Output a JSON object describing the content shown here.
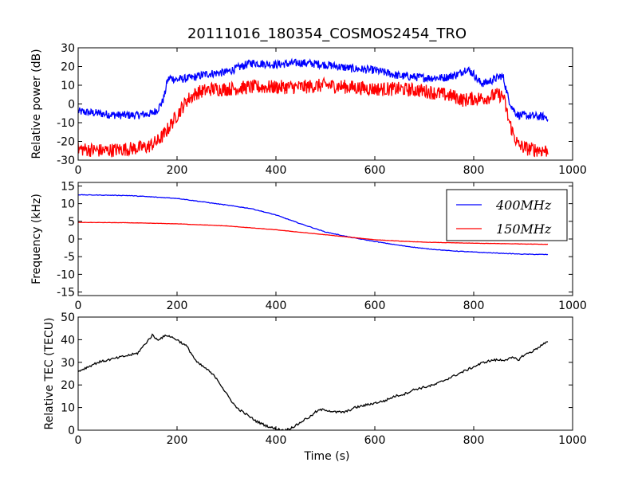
{
  "figure": {
    "title": "20111016_180354_COSMOS2454_TRO",
    "xlabel": "Time (s)"
  },
  "chart_data": [
    {
      "type": "line",
      "ylabel": "Relative power (dB)",
      "xlim": [
        0,
        1000
      ],
      "ylim": [
        -30,
        30
      ],
      "xticks": [
        0,
        200,
        400,
        600,
        800,
        1000
      ],
      "yticks": [
        -30,
        -20,
        -10,
        0,
        10,
        20,
        30
      ],
      "legend": false,
      "series": [
        {
          "color": "#0000ff",
          "noise": 2.2,
          "points": [
            [
              0,
              -4
            ],
            [
              40,
              -5
            ],
            [
              80,
              -6
            ],
            [
              120,
              -6
            ],
            [
              150,
              -5
            ],
            [
              160,
              -3
            ],
            [
              170,
              1
            ],
            [
              175,
              5
            ],
            [
              180,
              12
            ],
            [
              185,
              14
            ],
            [
              200,
              13
            ],
            [
              230,
              14
            ],
            [
              260,
              16
            ],
            [
              300,
              17
            ],
            [
              330,
              20
            ],
            [
              350,
              22
            ],
            [
              400,
              21
            ],
            [
              450,
              22
            ],
            [
              500,
              21
            ],
            [
              550,
              19
            ],
            [
              600,
              18
            ],
            [
              650,
              15
            ],
            [
              700,
              14
            ],
            [
              740,
              14
            ],
            [
              770,
              16
            ],
            [
              785,
              19
            ],
            [
              800,
              16
            ],
            [
              810,
              12
            ],
            [
              820,
              11
            ],
            [
              840,
              13
            ],
            [
              855,
              15
            ],
            [
              860,
              14
            ],
            [
              870,
              3
            ],
            [
              880,
              -3
            ],
            [
              890,
              -6
            ],
            [
              950,
              -7
            ]
          ]
        },
        {
          "color": "#ff0000",
          "noise": 3.8,
          "points": [
            [
              0,
              -24
            ],
            [
              50,
              -25
            ],
            [
              100,
              -24
            ],
            [
              140,
              -23
            ],
            [
              160,
              -20
            ],
            [
              175,
              -16
            ],
            [
              185,
              -12
            ],
            [
              200,
              -6
            ],
            [
              220,
              2
            ],
            [
              240,
              6
            ],
            [
              270,
              8
            ],
            [
              300,
              8
            ],
            [
              350,
              9
            ],
            [
              400,
              9
            ],
            [
              450,
              9
            ],
            [
              500,
              10
            ],
            [
              550,
              9
            ],
            [
              600,
              8
            ],
            [
              650,
              8
            ],
            [
              700,
              7
            ],
            [
              740,
              5
            ],
            [
              760,
              4
            ],
            [
              780,
              2
            ],
            [
              800,
              3
            ],
            [
              820,
              3
            ],
            [
              850,
              5
            ],
            [
              860,
              4
            ],
            [
              870,
              -8
            ],
            [
              880,
              -16
            ],
            [
              890,
              -22
            ],
            [
              910,
              -24
            ],
            [
              950,
              -25
            ]
          ]
        }
      ]
    },
    {
      "type": "line",
      "ylabel": "Frequency (kHz)",
      "xlim": [
        0,
        1000
      ],
      "ylim": [
        -16,
        16
      ],
      "xticks": [
        0,
        200,
        400,
        600,
        800,
        1000
      ],
      "yticks": [
        -15,
        -10,
        -5,
        0,
        5,
        10,
        15
      ],
      "legend": true,
      "legend_position": "top-right",
      "series": [
        {
          "name": "400MHz",
          "color": "#0000ff",
          "noise": 0.08,
          "points": [
            [
              0,
              12.5
            ],
            [
              100,
              12.3
            ],
            [
              200,
              11.5
            ],
            [
              300,
              9.6
            ],
            [
              350,
              8.6
            ],
            [
              400,
              6.8
            ],
            [
              450,
              4.3
            ],
            [
              500,
              2
            ],
            [
              550,
              0.5
            ],
            [
              600,
              -0.7
            ],
            [
              650,
              -1.8
            ],
            [
              700,
              -2.7
            ],
            [
              750,
              -3.3
            ],
            [
              800,
              -3.7
            ],
            [
              850,
              -4.0
            ],
            [
              900,
              -4.3
            ],
            [
              950,
              -4.4
            ]
          ]
        },
        {
          "name": "150MHz",
          "color": "#ff0000",
          "noise": 0.04,
          "points": [
            [
              0,
              4.7
            ],
            [
              100,
              4.6
            ],
            [
              200,
              4.3
            ],
            [
              300,
              3.7
            ],
            [
              400,
              2.6
            ],
            [
              500,
              1.2
            ],
            [
              550,
              0.5
            ],
            [
              600,
              -0.2
            ],
            [
              650,
              -0.6
            ],
            [
              700,
              -0.9
            ],
            [
              800,
              -1.2
            ],
            [
              900,
              -1.4
            ],
            [
              950,
              -1.5
            ]
          ]
        }
      ]
    },
    {
      "type": "line",
      "ylabel": "Relative TEC (TECU)",
      "xlim": [
        0,
        1000
      ],
      "ylim": [
        0,
        50
      ],
      "xticks": [
        0,
        200,
        400,
        600,
        800,
        1000
      ],
      "yticks": [
        0,
        10,
        20,
        30,
        40,
        50
      ],
      "legend": false,
      "series": [
        {
          "color": "#000000",
          "noise": 0.5,
          "points": [
            [
              0,
              26
            ],
            [
              20,
              28
            ],
            [
              40,
              30
            ],
            [
              60,
              31
            ],
            [
              80,
              32
            ],
            [
              100,
              33
            ],
            [
              120,
              34
            ],
            [
              135,
              38
            ],
            [
              150,
              42
            ],
            [
              160,
              40
            ],
            [
              170,
              41
            ],
            [
              180,
              42
            ],
            [
              200,
              40
            ],
            [
              220,
              37
            ],
            [
              240,
              30
            ],
            [
              260,
              27
            ],
            [
              280,
              23
            ],
            [
              300,
              16
            ],
            [
              320,
              10
            ],
            [
              340,
              7
            ],
            [
              360,
              4
            ],
            [
              380,
              2
            ],
            [
              400,
              0.5
            ],
            [
              420,
              0
            ],
            [
              440,
              2
            ],
            [
              460,
              5
            ],
            [
              470,
              6
            ],
            [
              480,
              8
            ],
            [
              490,
              9
            ],
            [
              500,
              9
            ],
            [
              520,
              8
            ],
            [
              540,
              8
            ],
            [
              560,
              10
            ],
            [
              580,
              11
            ],
            [
              600,
              12
            ],
            [
              620,
              13
            ],
            [
              640,
              15
            ],
            [
              660,
              16
            ],
            [
              680,
              18
            ],
            [
              700,
              19
            ],
            [
              720,
              20
            ],
            [
              740,
              22
            ],
            [
              760,
              24
            ],
            [
              780,
              26
            ],
            [
              800,
              28
            ],
            [
              820,
              30
            ],
            [
              840,
              31
            ],
            [
              860,
              31
            ],
            [
              880,
              32
            ],
            [
              890,
              31
            ],
            [
              900,
              33
            ],
            [
              920,
              35
            ],
            [
              940,
              38
            ],
            [
              950,
              39
            ]
          ]
        }
      ]
    }
  ]
}
